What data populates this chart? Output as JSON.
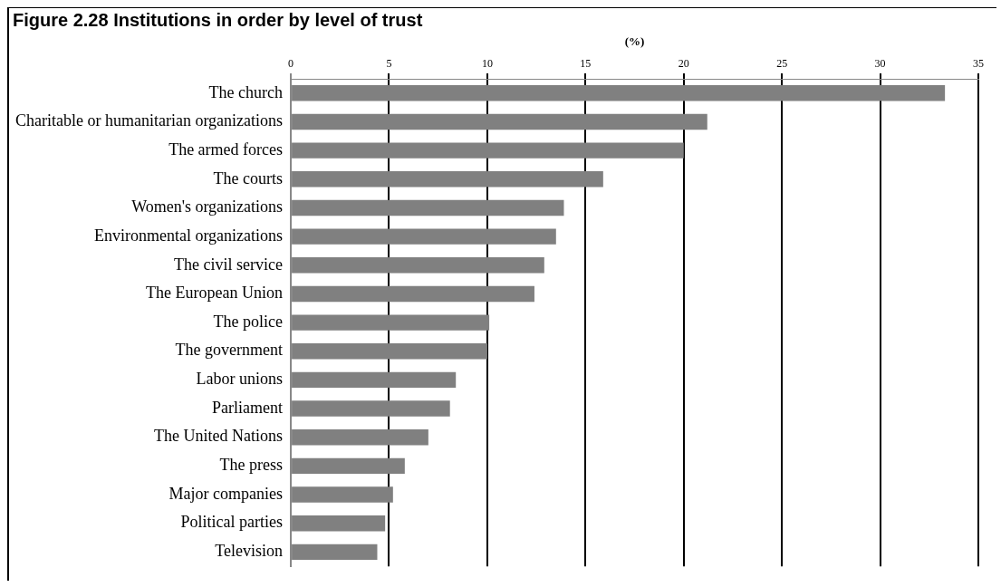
{
  "chart_data": {
    "type": "bar",
    "orientation": "horizontal",
    "title": "Figure 2.28 Institutions in order by level of trust",
    "xlabel": "(%)",
    "categories": [
      "The church",
      "Charitable or humanitarian organizations",
      "The armed forces",
      "The courts",
      "Women's organizations",
      "Environmental organizations",
      "The civil service",
      "The European Union",
      "The police",
      "The government",
      "Labor unions",
      "Parliament",
      "The United Nations",
      "The press",
      "Major companies",
      "Political parties",
      "Television"
    ],
    "values": [
      33.3,
      21.2,
      20.0,
      15.9,
      13.9,
      13.5,
      12.9,
      12.4,
      10.1,
      10.0,
      8.4,
      8.1,
      7.0,
      5.8,
      5.2,
      4.8,
      4.4
    ],
    "color": "#808080",
    "xlim": [
      0,
      35
    ],
    "xticks": [
      0,
      5,
      10,
      15,
      20,
      25,
      30,
      35
    ],
    "grid": "x",
    "legend": false
  }
}
